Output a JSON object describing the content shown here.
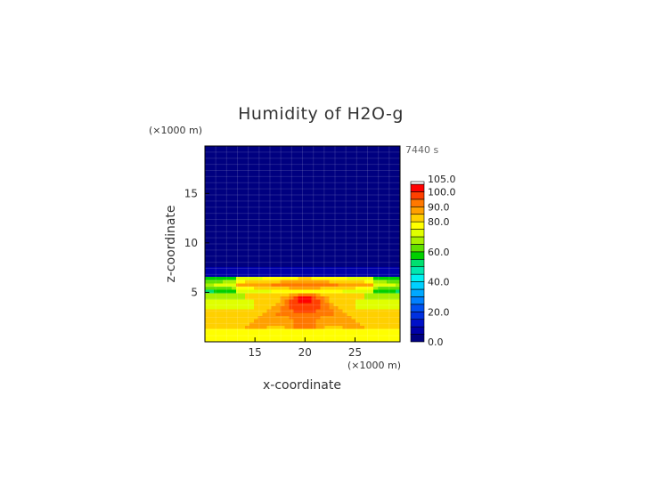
{
  "chart_data": {
    "type": "heatmap",
    "title": "Humidity of H2O-g",
    "xlabel": "x-coordinate",
    "ylabel": "z-coordinate",
    "x_unit": "(×1000 m)",
    "y_unit": "(×1000 m)",
    "time_label": "7440 s",
    "xlim": [
      10,
      29.5
    ],
    "ylim": [
      0,
      19.8
    ],
    "x_ticks": [
      "15",
      "20",
      "25"
    ],
    "x_tick_values": [
      15,
      20,
      25
    ],
    "y_ticks": [
      "5",
      "10",
      "15"
    ],
    "y_tick_values": [
      5,
      10,
      15
    ],
    "colorbar": {
      "levels": [
        0,
        5,
        10,
        15,
        20,
        25,
        30,
        35,
        40,
        45,
        50,
        55,
        60,
        65,
        70,
        75,
        80,
        85,
        90,
        95,
        100,
        105
      ],
      "colors": [
        "#000080",
        "#0000a8",
        "#0010c8",
        "#0030e0",
        "#0050f0",
        "#0080ff",
        "#00a8ff",
        "#00d0ff",
        "#00f0f0",
        "#00e8b0",
        "#00e070",
        "#00d000",
        "#60e000",
        "#a8f000",
        "#e0ff00",
        "#ffff00",
        "#ffd000",
        "#ffa000",
        "#ff7800",
        "#ff4000",
        "#ff0000",
        "#ffffff"
      ],
      "labels": [
        "0.0",
        "20.0",
        "40.0",
        "60.0",
        "80.0",
        "90.0",
        "100.0",
        "105.0"
      ],
      "label_values": [
        0,
        20,
        40,
        60,
        80,
        90,
        100,
        105
      ]
    },
    "field_description_bands": [
      {
        "z_range": [
          6.2,
          19.8
        ],
        "value": 2
      },
      {
        "z_range": [
          5.0,
          6.2
        ],
        "value": 88
      },
      {
        "z_range": [
          0,
          5.0
        ],
        "value": 82
      }
    ]
  }
}
